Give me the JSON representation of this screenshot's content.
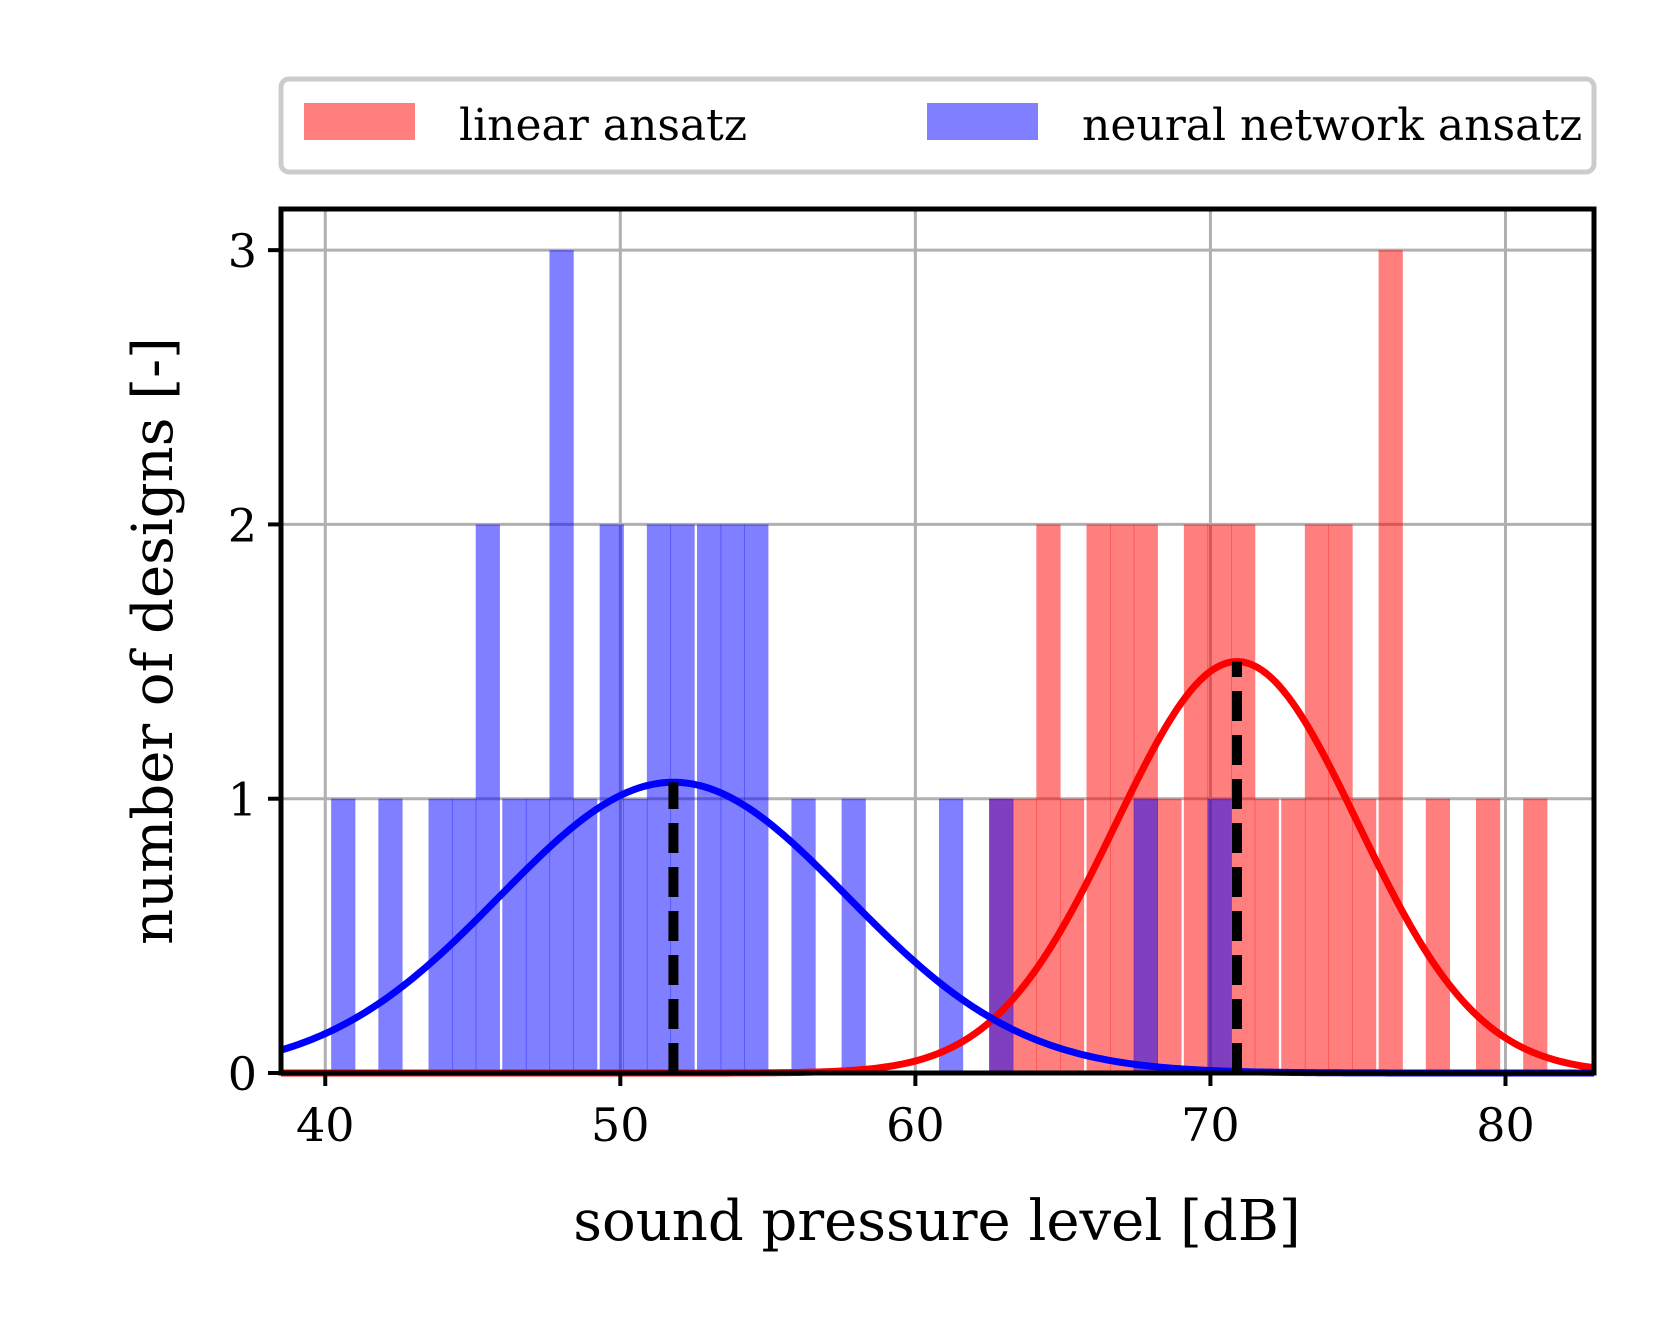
{
  "chart_data": {
    "type": "histogram",
    "xlabel": "sound pressure level [dB]",
    "ylabel": "number of designs [-]",
    "xlim": [
      38.5,
      83
    ],
    "ylim": [
      0,
      3.15
    ],
    "xticks": [
      40,
      50,
      60,
      70,
      80
    ],
    "yticks": [
      0,
      1,
      2,
      3
    ],
    "grid": true,
    "legend_position": "top, outside plot, two columns",
    "bin_width": 0.82,
    "series": [
      {
        "name": "linear ansatz",
        "color": "#ff0000",
        "fill_opacity": 0.5,
        "bins": [
          {
            "x0": 62.5,
            "count": 1
          },
          {
            "x0": 63.3,
            "count": 1
          },
          {
            "x0": 64.1,
            "count": 2
          },
          {
            "x0": 64.9,
            "count": 1
          },
          {
            "x0": 65.8,
            "count": 2
          },
          {
            "x0": 66.6,
            "count": 2
          },
          {
            "x0": 67.4,
            "count": 2
          },
          {
            "x0": 68.2,
            "count": 1
          },
          {
            "x0": 69.1,
            "count": 2
          },
          {
            "x0": 69.9,
            "count": 2
          },
          {
            "x0": 70.7,
            "count": 2
          },
          {
            "x0": 71.5,
            "count": 1
          },
          {
            "x0": 72.4,
            "count": 1
          },
          {
            "x0": 73.2,
            "count": 2
          },
          {
            "x0": 74.0,
            "count": 2
          },
          {
            "x0": 74.8,
            "count": 1
          },
          {
            "x0": 75.7,
            "count": 3
          },
          {
            "x0": 77.3,
            "count": 1
          },
          {
            "x0": 79.0,
            "count": 1
          },
          {
            "x0": 80.6,
            "count": 1
          }
        ],
        "fit": {
          "mean": 70.9,
          "std": 4.1,
          "peak": 1.5
        }
      },
      {
        "name": "neural network ansatz",
        "color": "#0000ff",
        "fill_opacity": 0.5,
        "bins": [
          {
            "x0": 40.2,
            "count": 1
          },
          {
            "x0": 41.8,
            "count": 1
          },
          {
            "x0": 43.5,
            "count": 1
          },
          {
            "x0": 44.3,
            "count": 1
          },
          {
            "x0": 45.1,
            "count": 2
          },
          {
            "x0": 46.0,
            "count": 1
          },
          {
            "x0": 46.8,
            "count": 1
          },
          {
            "x0": 47.6,
            "count": 3
          },
          {
            "x0": 48.4,
            "count": 1
          },
          {
            "x0": 49.3,
            "count": 2
          },
          {
            "x0": 50.1,
            "count": 1
          },
          {
            "x0": 50.9,
            "count": 2
          },
          {
            "x0": 51.7,
            "count": 2
          },
          {
            "x0": 52.6,
            "count": 2
          },
          {
            "x0": 53.4,
            "count": 2
          },
          {
            "x0": 54.2,
            "count": 2
          },
          {
            "x0": 55.8,
            "count": 1
          },
          {
            "x0": 57.5,
            "count": 1
          },
          {
            "x0": 60.8,
            "count": 1
          },
          {
            "x0": 62.5,
            "count": 1
          },
          {
            "x0": 67.4,
            "count": 1
          },
          {
            "x0": 69.9,
            "count": 1
          }
        ],
        "fit": {
          "mean": 51.8,
          "std": 5.9,
          "peak": 1.06
        }
      }
    ]
  }
}
